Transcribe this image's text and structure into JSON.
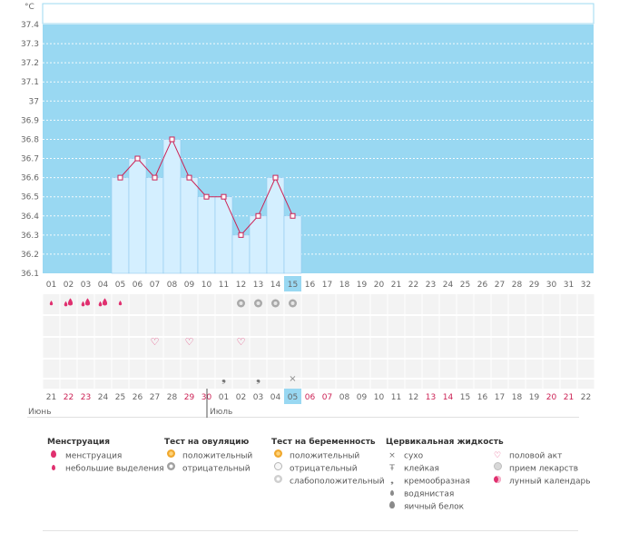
{
  "chart_data": {
    "type": "bar+line",
    "unit_label": "°C",
    "ylim": [
      36.1,
      37.4
    ],
    "yticks": [
      "36.1",
      "36.2",
      "36.3",
      "36.4",
      "36.5",
      "36.6",
      "36.7",
      "36.8",
      "36.9",
      "37",
      "37.1",
      "37.2",
      "37.3",
      "37.4"
    ],
    "cycle_days": [
      "01",
      "02",
      "03",
      "04",
      "05",
      "06",
      "07",
      "08",
      "09",
      "10",
      "11",
      "12",
      "13",
      "14",
      "15",
      "16",
      "17",
      "18",
      "19",
      "20",
      "21",
      "22",
      "23",
      "24",
      "25",
      "26",
      "27",
      "28",
      "29",
      "30",
      "31",
      "32"
    ],
    "current_day": "15",
    "temperatures": [
      {
        "day": "05",
        "value": 36.6
      },
      {
        "day": "06",
        "value": 36.7
      },
      {
        "day": "07",
        "value": 36.6
      },
      {
        "day": "08",
        "value": 36.8
      },
      {
        "day": "09",
        "value": 36.6
      },
      {
        "day": "10",
        "value": 36.5
      },
      {
        "day": "11",
        "value": 36.5
      },
      {
        "day": "12",
        "value": 36.3
      },
      {
        "day": "13",
        "value": 36.4
      },
      {
        "day": "14",
        "value": 36.6
      },
      {
        "day": "15",
        "value": 36.4
      }
    ],
    "calendar_dates": [
      "21",
      "22",
      "23",
      "24",
      "25",
      "26",
      "27",
      "28",
      "29",
      "30",
      "01",
      "02",
      "03",
      "04",
      "05",
      "06",
      "07",
      "08",
      "09",
      "10",
      "11",
      "12",
      "13",
      "14",
      "15",
      "16",
      "17",
      "18",
      "19",
      "20",
      "21",
      "22"
    ],
    "calendar_red_indices": [
      1,
      2,
      8,
      9,
      15,
      16,
      22,
      23,
      29,
      30
    ],
    "today_date_index": 14,
    "months": [
      {
        "label": "Июнь",
        "start_index": 0
      },
      {
        "label": "Июль",
        "start_index": 10
      }
    ],
    "markers": {
      "menstruation": [
        {
          "day": "01",
          "type": "small"
        },
        {
          "day": "02",
          "type": "full"
        },
        {
          "day": "03",
          "type": "full"
        },
        {
          "day": "04",
          "type": "full"
        },
        {
          "day": "05",
          "type": "small"
        }
      ],
      "ovulation_test": [
        {
          "day": "12",
          "result": "negative"
        },
        {
          "day": "13",
          "result": "negative"
        },
        {
          "day": "14",
          "result": "negative"
        },
        {
          "day": "15",
          "result": "negative"
        }
      ],
      "intercourse": [
        "07",
        "09",
        "12"
      ],
      "cervical_fluid": [
        {
          "day": "11",
          "type": "creamy"
        },
        {
          "day": "13",
          "type": "creamy"
        },
        {
          "day": "15",
          "type": "dry"
        }
      ]
    }
  },
  "legend": {
    "menstruation": {
      "title": "Менструация",
      "items": [
        {
          "icon": "drop-full-icon",
          "label": "менструация"
        },
        {
          "icon": "drop-small-icon",
          "label": "небольшие выделения"
        }
      ]
    },
    "ovulation": {
      "title": "Тест на овуляцию",
      "items": [
        {
          "icon": "ovulation-positive-icon",
          "label": "положительный"
        },
        {
          "icon": "ovulation-negative-icon",
          "label": "отрицательный"
        }
      ]
    },
    "pregnancy": {
      "title": "Тест на беременность",
      "items": [
        {
          "icon": "pregnancy-positive-icon",
          "label": "положительный"
        },
        {
          "icon": "pregnancy-negative-icon",
          "label": "отрицательный"
        },
        {
          "icon": "pregnancy-weak-icon",
          "label": "слабоположительный"
        }
      ]
    },
    "cervical": {
      "title": "Цервикальная жидкость",
      "items": [
        {
          "icon": "dry-icon",
          "label": "сухо"
        },
        {
          "icon": "sticky-icon",
          "label": "клейкая"
        },
        {
          "icon": "creamy-icon",
          "label": "кремообразная"
        },
        {
          "icon": "watery-icon",
          "label": "водянистая"
        },
        {
          "icon": "egg-white-icon",
          "label": "яичный белок"
        }
      ]
    },
    "other": {
      "items": [
        {
          "icon": "heart-icon",
          "label": "половой акт"
        },
        {
          "icon": "pill-icon",
          "label": "прием лекарств"
        },
        {
          "icon": "moon-icon",
          "label": "лунный календарь"
        }
      ]
    }
  },
  "colors": {
    "sky": "#99d8f2",
    "bar": "#d4efff",
    "bar_border": "#8fc9ee",
    "line": "#cc2255",
    "red_date": "#cc2255",
    "today": "#99d8f2"
  }
}
